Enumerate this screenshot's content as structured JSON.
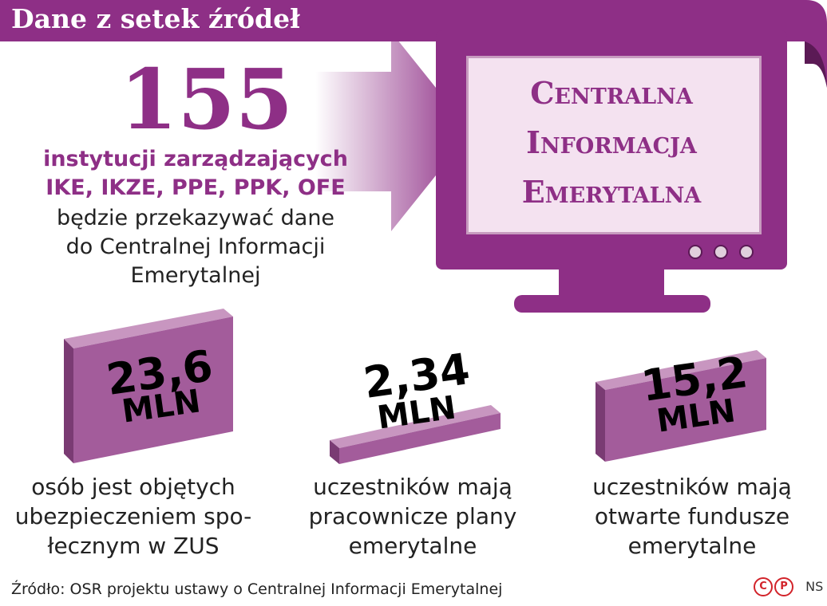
{
  "header": {
    "title": "Dane z setek źródeł"
  },
  "intro": {
    "number": "155",
    "line1": "instytucji zarządzających",
    "line2": "IKE, IKZE, PPE, PPK, OFE",
    "line3": "będzie przekazywać dane",
    "line4": "do Centralnej Informacji",
    "line5": "Emerytalnej"
  },
  "monitor": {
    "line1": "Centralna",
    "line2": "Informacja",
    "line3": "Emerytalna"
  },
  "stats": [
    {
      "number": "23,6",
      "unit": "MLN",
      "label1": "osób jest objętych",
      "label2": "ubezpieczeniem spo-",
      "label3": "łecznym w ZUS"
    },
    {
      "number": "2,34",
      "unit": "MLN",
      "label1": "uczestników mają",
      "label2": "pracownicze plany",
      "label3": "emerytalne"
    },
    {
      "number": "15,2",
      "unit": "MLN",
      "label1": "uczestników mają",
      "label2": "otwarte fundusze",
      "label3": "emerytalne"
    }
  ],
  "footer": {
    "source": "Źródło: OSR projektu ustawy o Centralnej Informacji Emerytalnej",
    "logo_c": "C",
    "logo_p": "P",
    "author": "NS"
  },
  "colors": {
    "accent": "#8e2f86",
    "block_front": "#a35c9b",
    "block_top": "#c896c0"
  }
}
